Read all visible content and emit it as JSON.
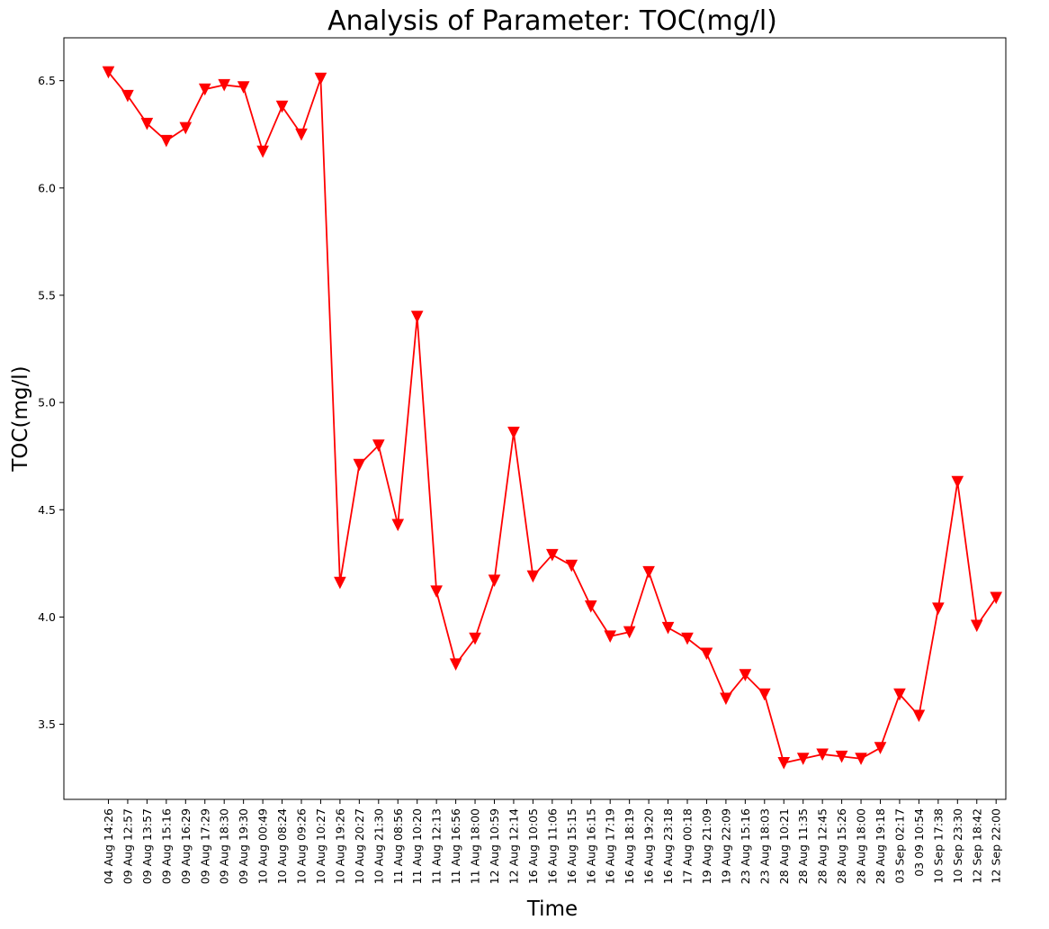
{
  "chart_data": {
    "type": "line",
    "title": "Analysis of Parameter: TOC(mg/l)",
    "xlabel": "Time",
    "ylabel": "TOC(mg/l)",
    "ylim": [
      3.15,
      6.7
    ],
    "yticks": [
      "3.5",
      "4.0",
      "4.5",
      "5.0",
      "5.5",
      "6.0",
      "6.5"
    ],
    "grid": false,
    "legend": "none",
    "marker": "triangle-down",
    "color": "#ff0000",
    "categories": [
      "04 Aug 14:26",
      "09 Aug 12:57",
      "09 Aug 13:57",
      "09 Aug 15:16",
      "09 Aug 16:29",
      "09 Aug 17:29",
      "09 Aug 18:30",
      "09 Aug 19:30",
      "10 Aug 00:49",
      "10 Aug 08:24",
      "10 Aug 09:26",
      "10 Aug 10:27",
      "10 Aug 19:26",
      "10 Aug 20:27",
      "10 Aug 21:30",
      "11 Aug 08:56",
      "11 Aug 10:20",
      "11 Aug 12:13",
      "11 Aug 16:56",
      "11 Aug 18:00",
      "12 Aug 10:59",
      "12 Aug 12:14",
      "16 Aug 10:05",
      "16 Aug 11:06",
      "16 Aug 15:15",
      "16 Aug 16:15",
      "16 Aug 17:19",
      "16 Aug 18:19",
      "16 Aug 19:20",
      "16 Aug 23:18",
      "17 Aug 00:18",
      "19 Aug 21:09",
      "19 Aug 22:09",
      "23 Aug 15:16",
      "23 Aug 18:03",
      "28 Aug 10:21",
      "28 Aug 11:35",
      "28 Aug 12:45",
      "28 Aug 15:26",
      "28 Aug 18:00",
      "28 Aug 19:18",
      "03 Sep 02:17",
      "03 09 10:54",
      "10 Sep 17:38",
      "10 Sep 23:30",
      "12 Sep 18:42",
      "12 Sep 22:00"
    ],
    "values": [
      6.54,
      6.43,
      6.3,
      6.22,
      6.28,
      6.46,
      6.48,
      6.47,
      6.17,
      6.38,
      6.25,
      6.51,
      4.16,
      4.71,
      4.8,
      4.43,
      5.4,
      4.12,
      3.78,
      3.9,
      4.17,
      4.86,
      4.19,
      4.29,
      4.24,
      4.05,
      3.91,
      3.93,
      4.21,
      3.95,
      3.9,
      3.83,
      3.62,
      3.73,
      3.64,
      3.32,
      3.34,
      3.36,
      3.35,
      3.34,
      3.39,
      3.64,
      3.54,
      4.04,
      4.63,
      3.96,
      4.09
    ]
  }
}
